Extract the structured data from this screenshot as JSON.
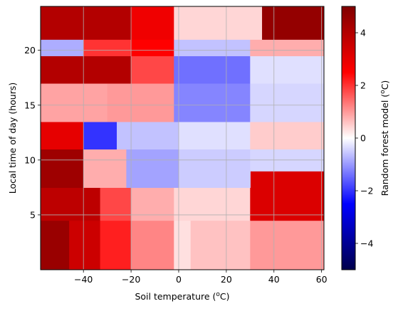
{
  "chart_data": {
    "type": "heatmap",
    "xlabel_main": "Soil temperature (",
    "xlabel_sup": "o",
    "xlabel_tail": "C)",
    "ylabel": "Local time of day (hours)",
    "colorbar_label_main": "Random forest model (",
    "colorbar_label_sup": "o",
    "colorbar_label_tail": "C)",
    "xlim": [
      -58,
      61
    ],
    "ylim": [
      0,
      24
    ],
    "x_ticks": [
      -40,
      -20,
      0,
      20,
      40,
      60
    ],
    "x_tick_labels": [
      "−40",
      "−20",
      "0",
      "20",
      "40",
      "60"
    ],
    "y_ticks": [
      5,
      10,
      15,
      20
    ],
    "y_tick_labels": [
      "5",
      "10",
      "15",
      "20"
    ],
    "clim": [
      -5,
      5
    ],
    "colorbar_ticks": [
      -4,
      -2,
      0,
      2,
      4
    ],
    "colorbar_tick_labels": [
      "−4",
      "−2",
      "0",
      "2",
      "4"
    ],
    "colormap": "seismic",
    "grid": true,
    "regions": [
      {
        "x": [
          -58,
          -46
        ],
        "y": [
          0,
          4.5
        ],
        "value": 4.5
      },
      {
        "x": [
          -46,
          -33
        ],
        "y": [
          0,
          4.5
        ],
        "value": 3.5
      },
      {
        "x": [
          -33,
          -20
        ],
        "y": [
          0,
          4.5
        ],
        "value": 2.2
      },
      {
        "x": [
          -20,
          -2
        ],
        "y": [
          0,
          4.5
        ],
        "value": 1.2
      },
      {
        "x": [
          -2,
          5
        ],
        "y": [
          0,
          4.5
        ],
        "value": 0.3
      },
      {
        "x": [
          5,
          30
        ],
        "y": [
          0,
          4.5
        ],
        "value": 0.6
      },
      {
        "x": [
          30,
          61
        ],
        "y": [
          0,
          4.5
        ],
        "value": 1.0
      },
      {
        "x": [
          -58,
          -33
        ],
        "y": [
          4.5,
          7.5
        ],
        "value": 3.8
      },
      {
        "x": [
          -33,
          -20
        ],
        "y": [
          4.5,
          7.5
        ],
        "value": 1.8
      },
      {
        "x": [
          -20,
          -2
        ],
        "y": [
          4.5,
          7.5
        ],
        "value": 0.8
      },
      {
        "x": [
          -2,
          30
        ],
        "y": [
          4.5,
          7.5
        ],
        "value": 0.4
      },
      {
        "x": [
          30,
          61
        ],
        "y": [
          4.5,
          9
        ],
        "value": 3.2
      },
      {
        "x": [
          -58,
          -40
        ],
        "y": [
          7.5,
          11
        ],
        "value": 4.4
      },
      {
        "x": [
          -40,
          -22
        ],
        "y": [
          7.5,
          11
        ],
        "value": 0.8
      },
      {
        "x": [
          -22,
          0
        ],
        "y": [
          7.5,
          11
        ],
        "value": -0.9
      },
      {
        "x": [
          0,
          30
        ],
        "y": [
          7.5,
          11
        ],
        "value": -0.5
      },
      {
        "x": [
          30,
          61
        ],
        "y": [
          9,
          11
        ],
        "value": -0.4
      },
      {
        "x": [
          -58,
          -40
        ],
        "y": [
          11,
          13.5
        ],
        "value": 3.0
      },
      {
        "x": [
          -40,
          -26
        ],
        "y": [
          11,
          13.5
        ],
        "value": -2.0
      },
      {
        "x": [
          -26,
          0
        ],
        "y": [
          11,
          13.5
        ],
        "value": -0.6
      },
      {
        "x": [
          0,
          30
        ],
        "y": [
          11,
          13.5
        ],
        "value": -0.3
      },
      {
        "x": [
          30,
          61
        ],
        "y": [
          11,
          13.5
        ],
        "value": 0.5
      },
      {
        "x": [
          -58,
          -30
        ],
        "y": [
          13.5,
          17
        ],
        "value": 0.9
      },
      {
        "x": [
          -30,
          -2
        ],
        "y": [
          13.5,
          17
        ],
        "value": 1.0
      },
      {
        "x": [
          -2,
          30
        ],
        "y": [
          13.5,
          17
        ],
        "value": -1.2
      },
      {
        "x": [
          30,
          61
        ],
        "y": [
          13.5,
          17
        ],
        "value": -0.4
      },
      {
        "x": [
          -58,
          -20
        ],
        "y": [
          17,
          19.5
        ],
        "value": 4.0
      },
      {
        "x": [
          -20,
          -2
        ],
        "y": [
          17,
          19.5
        ],
        "value": 1.8
      },
      {
        "x": [
          -2,
          30
        ],
        "y": [
          17,
          19.5
        ],
        "value": -1.4
      },
      {
        "x": [
          30,
          61
        ],
        "y": [
          17,
          19.5
        ],
        "value": -0.3
      },
      {
        "x": [
          -58,
          -40
        ],
        "y": [
          19.5,
          21
        ],
        "value": -0.8
      },
      {
        "x": [
          -40,
          -20
        ],
        "y": [
          19.5,
          21
        ],
        "value": 2.0
      },
      {
        "x": [
          -20,
          -2
        ],
        "y": [
          19.5,
          21
        ],
        "value": 2.5
      },
      {
        "x": [
          -2,
          30
        ],
        "y": [
          19.5,
          21
        ],
        "value": -0.6
      },
      {
        "x": [
          30,
          61
        ],
        "y": [
          19.5,
          21
        ],
        "value": 0.8
      },
      {
        "x": [
          -58,
          -20
        ],
        "y": [
          21,
          24
        ],
        "value": 4.0
      },
      {
        "x": [
          -20,
          -2
        ],
        "y": [
          21,
          24
        ],
        "value": 2.8
      },
      {
        "x": [
          -2,
          35
        ],
        "y": [
          21,
          24
        ],
        "value": 0.4
      },
      {
        "x": [
          35,
          61
        ],
        "y": [
          21,
          24
        ],
        "value": 4.6
      }
    ]
  }
}
